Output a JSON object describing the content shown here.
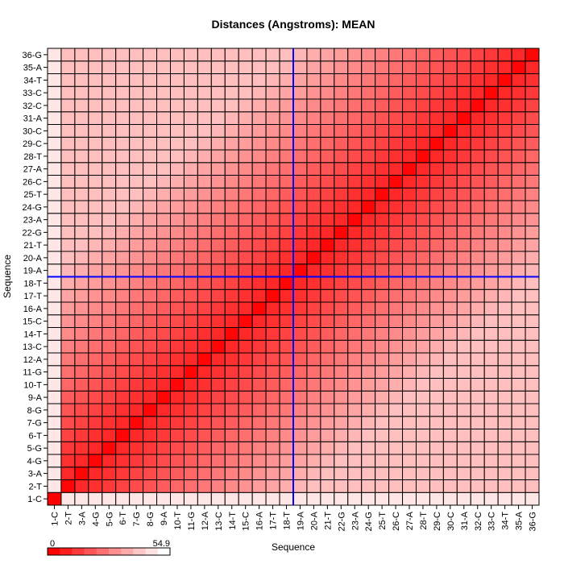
{
  "chart_data": {
    "type": "heatmap",
    "title": "Distances (Angstroms):  MEAN",
    "xlabel": "Sequence",
    "ylabel": "Sequence",
    "labels": [
      "1-C",
      "2-T",
      "3-A",
      "4-G",
      "5-G",
      "6-T",
      "7-G",
      "8-G",
      "9-A",
      "10-T",
      "11-G",
      "12-A",
      "13-C",
      "14-T",
      "15-C",
      "16-A",
      "17-T",
      "18-T",
      "19-A",
      "20-A",
      "21-T",
      "22-G",
      "23-A",
      "24-G",
      "25-T",
      "26-C",
      "27-A",
      "28-T",
      "29-C",
      "30-C",
      "31-A",
      "32-C",
      "33-C",
      "34-T",
      "35-A",
      "36-G"
    ],
    "value_range": [
      0,
      54.9
    ],
    "colorbar": {
      "min_label": "0",
      "max_label": "54.9",
      "low_color": "#ff0000",
      "high_color": "#ffffff"
    },
    "crosshair": {
      "x_label": "19-A",
      "y_label": "18-T",
      "color": "#0000ff"
    },
    "grid": true
  }
}
